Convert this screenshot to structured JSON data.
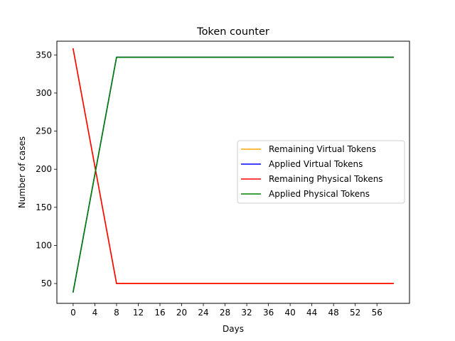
{
  "chart_data": {
    "type": "line",
    "title": "Token counter",
    "xlabel": "Days",
    "ylabel": "Number of cases",
    "xlim": [
      -3,
      62
    ],
    "ylim": [
      24,
      368
    ],
    "xticks": [
      0,
      4,
      8,
      12,
      16,
      20,
      24,
      28,
      32,
      36,
      40,
      44,
      48,
      52,
      56
    ],
    "yticks": [
      50,
      100,
      150,
      200,
      250,
      300,
      350
    ],
    "grid": false,
    "legend_position": "center-right",
    "series": [
      {
        "name": "Remaining Virtual Tokens",
        "color": "#ffa500",
        "x": [
          0,
          8,
          59
        ],
        "y": [
          358,
          50,
          50
        ]
      },
      {
        "name": "Applied Virtual Tokens",
        "color": "#0000ff",
        "x": [
          0,
          8,
          59
        ],
        "y": [
          39,
          347,
          347
        ]
      },
      {
        "name": "Remaining Physical Tokens",
        "color": "#ff0000",
        "x": [
          0,
          8,
          59
        ],
        "y": [
          358,
          50,
          50
        ]
      },
      {
        "name": "Applied Physical Tokens",
        "color": "#008000",
        "x": [
          0,
          8,
          59
        ],
        "y": [
          39,
          347,
          347
        ]
      }
    ]
  }
}
